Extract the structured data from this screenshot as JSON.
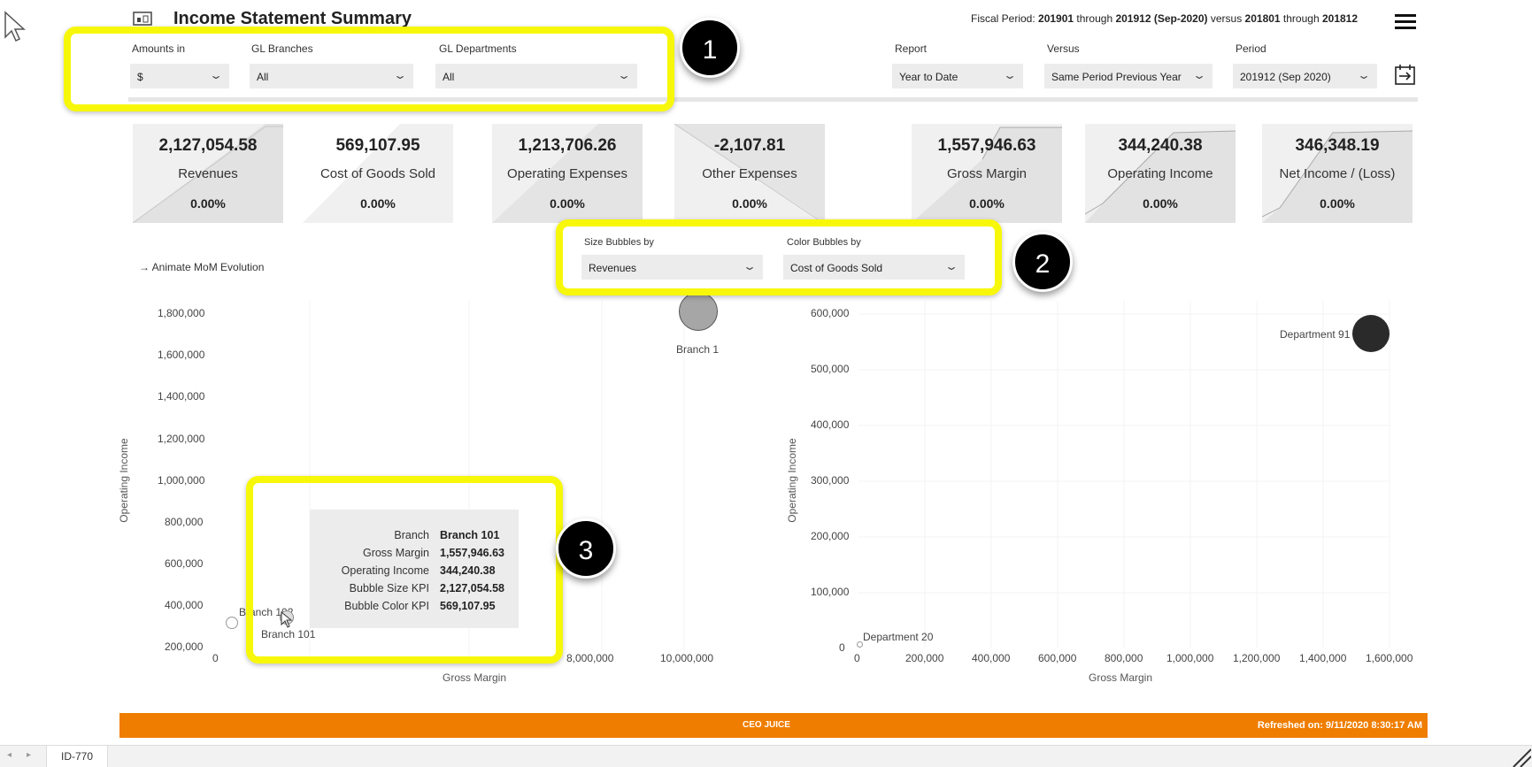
{
  "header": {
    "title": "Income Statement Summary",
    "fiscal_prefix": "Fiscal Period: ",
    "p1": "201901",
    "t1": " through ",
    "p2": "201912 (Sep-2020)",
    "vs": " versus ",
    "p3": "201801",
    "t2": " through ",
    "p4": "201812"
  },
  "filters": {
    "amounts_label": "Amounts in",
    "amounts_value": "$",
    "branches_label": "GL Branches",
    "branches_value": "All",
    "departments_label": "GL Departments",
    "departments_value": "All",
    "report_label": "Report",
    "report_value": "Year to Date",
    "versus_label": "Versus",
    "versus_value": "Same Period Previous Year",
    "period_label": "Period",
    "period_value": "201912 (Sep 2020)"
  },
  "kpis": [
    {
      "value": "2,127,054.58",
      "name": "Revenues",
      "pct": "0.00%"
    },
    {
      "value": "569,107.95",
      "name": "Cost of Goods Sold",
      "pct": "0.00%"
    },
    {
      "value": "1,213,706.26",
      "name": "Operating Expenses",
      "pct": "0.00%"
    },
    {
      "value": "-2,107.81",
      "name": "Other Expenses",
      "pct": "0.00%"
    },
    {
      "value": "1,557,946.63",
      "name": "Gross Margin",
      "pct": "0.00%"
    },
    {
      "value": "344,240.38",
      "name": "Operating Income",
      "pct": "0.00%"
    },
    {
      "value": "346,348.19",
      "name": "Net Income / (Loss)",
      "pct": "0.00%"
    }
  ],
  "animate_label": "→ Animate MoM Evolution",
  "bubble_controls": {
    "size_label": "Size Bubbles by",
    "size_value": "Revenues",
    "color_label": "Color Bubbles by",
    "color_value": "Cost of Goods Sold"
  },
  "callouts": [
    "1",
    "2",
    "3"
  ],
  "tooltip": {
    "rows": [
      {
        "k": "Branch",
        "v": "Branch 101"
      },
      {
        "k": "Gross Margin",
        "v": "1,557,946.63"
      },
      {
        "k": "Operating Income",
        "v": "344,240.38"
      },
      {
        "k": "Bubble Size KPI",
        "v": "2,127,054.58"
      },
      {
        "k": "Bubble Color KPI",
        "v": "569,107.95"
      }
    ]
  },
  "chart_data": [
    {
      "type": "scatter",
      "xlabel": "Gross Margin",
      "ylabel": "Operating Income",
      "yticks": [
        "1,800,000",
        "1,600,000",
        "1,400,000",
        "1,200,000",
        "1,000,000",
        "800,000",
        "600,000",
        "400,000",
        "200,000"
      ],
      "xticks": [
        "0",
        "8,000,000",
        "10,000,000"
      ],
      "points": [
        {
          "name": "Branch 1",
          "x": 10000000,
          "y": 1770000
        },
        {
          "name": "Branch 102",
          "x": 350000,
          "y": 320000
        },
        {
          "name": "Branch 101",
          "x": 1557946.63,
          "y": 344240.38
        }
      ]
    },
    {
      "type": "scatter",
      "xlabel": "Gross Margin",
      "ylabel": "Operating Income",
      "yticks": [
        "600,000",
        "500,000",
        "400,000",
        "300,000",
        "200,000",
        "100,000",
        "0"
      ],
      "xticks": [
        "0",
        "200,000",
        "400,000",
        "600,000",
        "800,000",
        "1,000,000",
        "1,200,000",
        "1,400,000",
        "1,600,000"
      ],
      "points": [
        {
          "name": "Department 91",
          "x": 1560000,
          "y": 560000
        },
        {
          "name": "Department 20",
          "x": 5000,
          "y": 3000
        }
      ]
    }
  ],
  "footer": {
    "logo": "CEO JUICE",
    "refreshed": "Refreshed on: 9/11/2020 8:30:17 AM"
  },
  "bottom_tab": "ID-770",
  "colors": {
    "accent_orange": "#ef7d00",
    "highlight": "#f7f70a"
  }
}
